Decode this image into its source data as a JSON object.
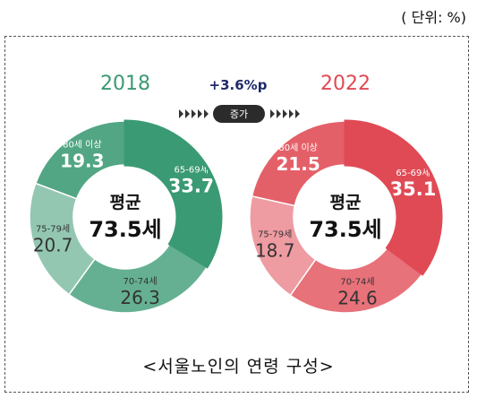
{
  "unit_label": "( 단위:  %)",
  "caption": "<서울노인의 연령 구성>",
  "increase": {
    "value_label": "+3.6%p",
    "badge_label": "증가"
  },
  "chart_data": [
    {
      "type": "pie",
      "title": "2018",
      "center_label_top": "평균",
      "center_label_value": "73.5세",
      "color": "#3a9a73",
      "slices": [
        {
          "label": "65-69세",
          "value": 33.7
        },
        {
          "label": "70-74세",
          "value": 26.3
        },
        {
          "label": "75-79세",
          "value": 20.7
        },
        {
          "label": "80세 이상",
          "value": 19.3
        }
      ]
    },
    {
      "type": "pie",
      "title": "2022",
      "center_label_top": "평균",
      "center_label_value": "73.5세",
      "color": "#e04a55",
      "slices": [
        {
          "label": "65-69세",
          "value": 35.1
        },
        {
          "label": "70-74세",
          "value": 24.6
        },
        {
          "label": "75-79세",
          "value": 18.7
        },
        {
          "label": "80세 이상",
          "value": 21.5
        }
      ]
    }
  ]
}
